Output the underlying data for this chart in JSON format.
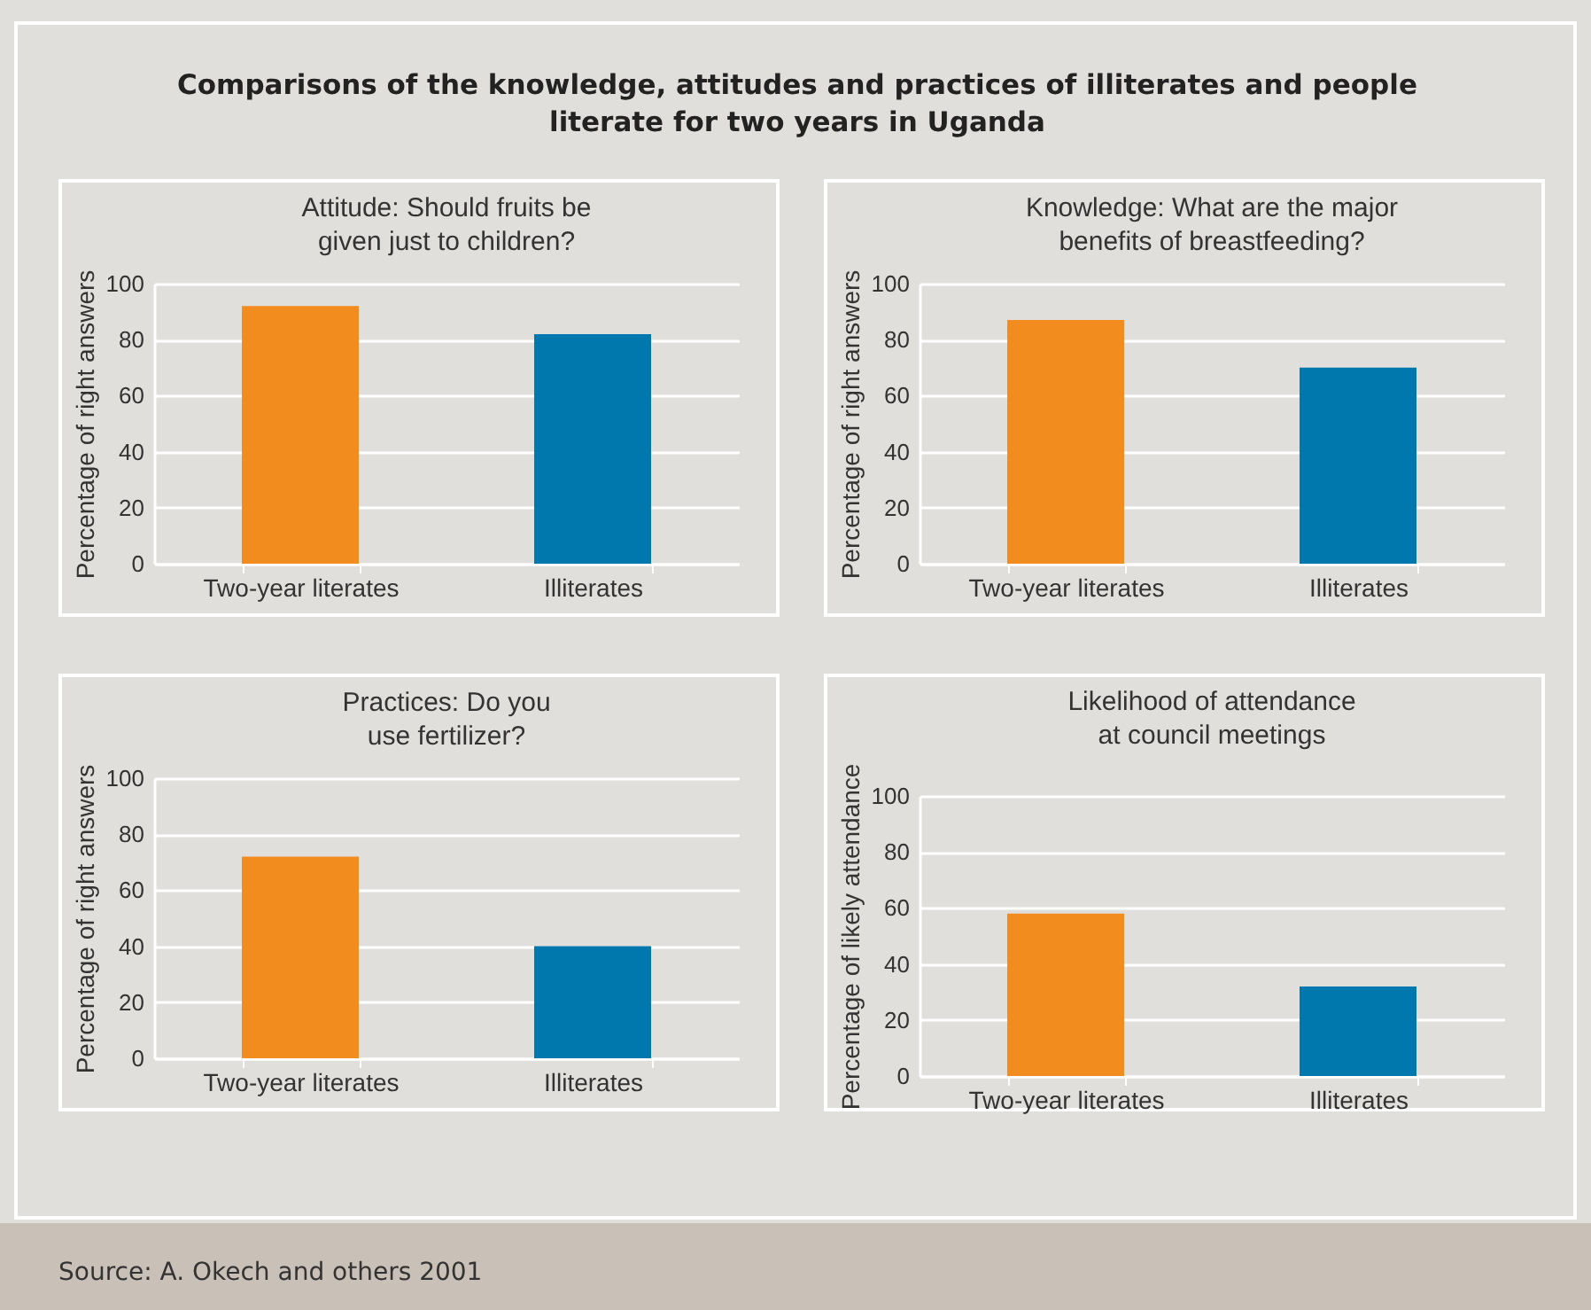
{
  "chart_data": [
    {
      "type": "other",
      "title": "Comparisons of the knowledge, attitudes and practices of illiterates and people literate for two years in Uganda",
      "annotations": [
        "Source: A. Okech and others 2001"
      ]
    },
    {
      "type": "bar",
      "title": "Attitude: Should fruits be given just to children?",
      "ylabel": "Percentage of right answers",
      "categories": [
        "Two-year literates",
        "Illiterates"
      ],
      "values": [
        92,
        82
      ],
      "colors": [
        "#f28c1e",
        "#0077ad"
      ],
      "ylim": [
        0,
        100
      ],
      "yticks": [
        0,
        20,
        40,
        60,
        80,
        100
      ],
      "grid": "y"
    },
    {
      "type": "bar",
      "title": "Knowledge: What are the major benefits of breastfeeding?",
      "ylabel": "Percentage of right answers",
      "categories": [
        "Two-year literates",
        "Illiterates"
      ],
      "values": [
        87,
        70
      ],
      "colors": [
        "#f28c1e",
        "#0077ad"
      ],
      "ylim": [
        0,
        100
      ],
      "yticks": [
        0,
        20,
        40,
        60,
        80,
        100
      ],
      "grid": "y"
    },
    {
      "type": "bar",
      "title": "Practices: Do you use fertilizer?",
      "ylabel": "Percentage of right answers",
      "categories": [
        "Two-year literates",
        "Illiterates"
      ],
      "values": [
        72,
        40
      ],
      "colors": [
        "#f28c1e",
        "#0077ad"
      ],
      "ylim": [
        0,
        100
      ],
      "yticks": [
        0,
        20,
        40,
        60,
        80,
        100
      ],
      "grid": "y"
    },
    {
      "type": "bar",
      "title": "Likelihood of attendance at council meetings",
      "ylabel": "Percentage of likely attendance",
      "categories": [
        "Two-year literates",
        "Illiterates"
      ],
      "values": [
        58,
        32
      ],
      "colors": [
        "#f28c1e",
        "#0077ad"
      ],
      "ylim": [
        0,
        100
      ],
      "yticks": [
        0,
        20,
        40,
        60,
        80,
        100
      ],
      "grid": "y"
    }
  ]
}
